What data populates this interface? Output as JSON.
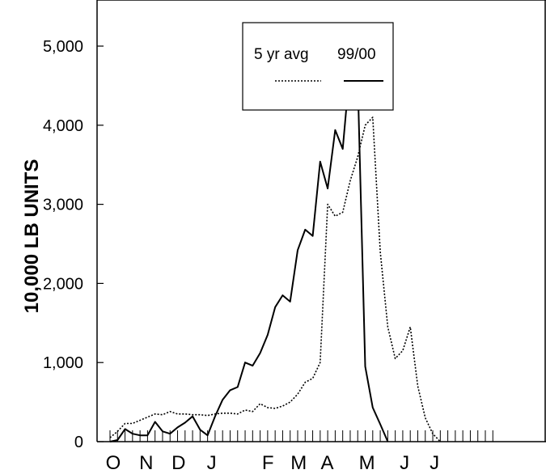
{
  "chart_data": {
    "type": "line",
    "ylabel": "10,000 LB UNITS",
    "xlabel": "",
    "ylim": [
      0,
      5400
    ],
    "yticks": [
      0,
      1000,
      2000,
      3000,
      4000,
      5000
    ],
    "ytick_labels": [
      "0",
      "1,000",
      "2,000",
      "3,000",
      "4,000",
      "5,000"
    ],
    "month_labels": [
      "O",
      "N",
      "D",
      "J",
      "F",
      "M",
      "A",
      "M",
      "J",
      "J"
    ],
    "weeks": 52,
    "legend": {
      "placement": "top-center",
      "entries": [
        "5 yr avg",
        "99/00"
      ]
    },
    "series": [
      {
        "name": "5 yr avg",
        "style": "dotted",
        "values": [
          50,
          130,
          230,
          230,
          270,
          310,
          350,
          340,
          380,
          350,
          350,
          340,
          340,
          330,
          350,
          360,
          360,
          350,
          400,
          380,
          480,
          430,
          420,
          450,
          500,
          600,
          750,
          800,
          1000,
          3000,
          2850,
          2900,
          3300,
          3600,
          4000,
          4100,
          2400,
          1450,
          1050,
          1150,
          1450,
          700,
          300,
          100,
          0
        ]
      },
      {
        "name": "99/00",
        "style": "solid",
        "values": [
          0,
          20,
          160,
          100,
          80,
          80,
          250,
          130,
          100,
          180,
          240,
          320,
          150,
          80,
          320,
          530,
          650,
          690,
          1000,
          960,
          1120,
          1350,
          1700,
          1850,
          1770,
          2420,
          2680,
          2600,
          3540,
          3200,
          3940,
          3700,
          4770,
          4600,
          950,
          430,
          220,
          0
        ]
      }
    ]
  }
}
